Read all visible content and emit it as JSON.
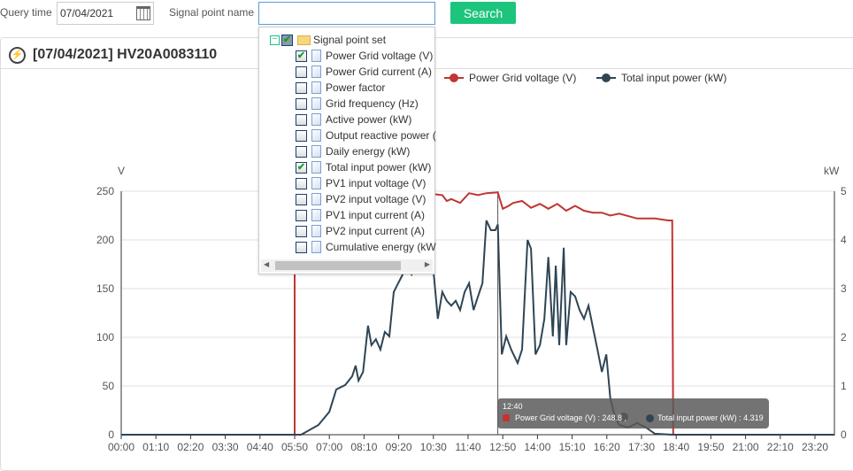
{
  "query": {
    "time_label": "Query time",
    "date": "07/04/2021",
    "signal_label": "Signal point name",
    "signal_value": "",
    "search_label": "Search"
  },
  "panel": {
    "title": "[07/04/2021] HV20A0083110"
  },
  "dropdown": {
    "root": "Signal point set",
    "items": [
      {
        "label": "Power Grid voltage (V)",
        "checked": true
      },
      {
        "label": "Power Grid current (A)",
        "checked": false
      },
      {
        "label": "Power factor",
        "checked": false
      },
      {
        "label": "Grid frequency (Hz)",
        "checked": false
      },
      {
        "label": "Active power (kW)",
        "checked": false
      },
      {
        "label": "Output reactive power (",
        "checked": false
      },
      {
        "label": "Daily energy (kW)",
        "checked": false
      },
      {
        "label": "Total input power (kW)",
        "checked": true
      },
      {
        "label": "PV1 input voltage (V)",
        "checked": false
      },
      {
        "label": "PV2 input voltage (V)",
        "checked": false
      },
      {
        "label": "PV1 input current (A)",
        "checked": false
      },
      {
        "label": "PV2 input current (A)",
        "checked": false
      },
      {
        "label": "Cumulative energy (kW",
        "checked": false
      }
    ]
  },
  "tooltip": {
    "time": "12:40",
    "line1": "Power Grid voltage (V) : 248.8 ,",
    "line2": "Total input power (kW) : 4.319"
  },
  "chart_data": {
    "type": "line",
    "yleft": {
      "unit": "V",
      "range": [
        0,
        250
      ],
      "ticks": [
        "0",
        "50",
        "100",
        "150",
        "200",
        "250"
      ]
    },
    "yright": {
      "unit": "kW",
      "range": [
        0,
        5
      ],
      "ticks": [
        "0",
        "1",
        "2",
        "3",
        "4",
        "5"
      ]
    },
    "xticks": [
      "00:00",
      "01:10",
      "02:20",
      "03:30",
      "04:40",
      "05:50",
      "07:00",
      "08:10",
      "09:20",
      "10:30",
      "11:40",
      "12:50",
      "14:00",
      "15:10",
      "16:20",
      "17:30",
      "18:40",
      "19:50",
      "21:00",
      "22:10",
      "23:20"
    ],
    "grid": true,
    "legend": "top",
    "series": [
      {
        "name": "Power Grid voltage (V)",
        "axis": "left",
        "color": "#c23531",
        "points": [
          [
            "00:00",
            0
          ],
          [
            "05:50",
            0
          ],
          [
            "05:50",
            245
          ],
          [
            "08:00",
            246
          ],
          [
            "10:30",
            247
          ],
          [
            "10:48",
            246
          ],
          [
            "10:57",
            240
          ],
          [
            "11:06",
            242
          ],
          [
            "11:24",
            238
          ],
          [
            "11:42",
            248
          ],
          [
            "12:00",
            246
          ],
          [
            "12:17",
            248
          ],
          [
            "12:40",
            248.8
          ],
          [
            "12:50",
            232
          ],
          [
            "13:02",
            235
          ],
          [
            "13:11",
            238
          ],
          [
            "13:29",
            240
          ],
          [
            "13:47",
            233
          ],
          [
            "14:05",
            237
          ],
          [
            "14:22",
            232
          ],
          [
            "14:40",
            237
          ],
          [
            "14:58",
            230
          ],
          [
            "15:16",
            235
          ],
          [
            "15:34",
            230
          ],
          [
            "15:52",
            228
          ],
          [
            "16:10",
            228
          ],
          [
            "16:27",
            225
          ],
          [
            "16:45",
            227
          ],
          [
            "17:21",
            222
          ],
          [
            "17:57",
            222
          ],
          [
            "18:24",
            220
          ],
          [
            "18:32",
            220
          ],
          [
            "18:34",
            0
          ],
          [
            "24:00",
            0
          ]
        ]
      },
      {
        "name": "Total input power (kW)",
        "axis": "right",
        "color": "#2f4554",
        "points": [
          [
            "00:00",
            0
          ],
          [
            "06:03",
            0
          ],
          [
            "06:38",
            0.2
          ],
          [
            "07:00",
            0.47
          ],
          [
            "07:14",
            0.93
          ],
          [
            "07:32",
            1.02
          ],
          [
            "07:46",
            1.2
          ],
          [
            "07:53",
            1.42
          ],
          [
            "07:59",
            1.11
          ],
          [
            "08:08",
            1.29
          ],
          [
            "08:18",
            2.24
          ],
          [
            "08:25",
            1.84
          ],
          [
            "08:34",
            1.96
          ],
          [
            "08:43",
            1.75
          ],
          [
            "08:52",
            2.11
          ],
          [
            "09:01",
            2.02
          ],
          [
            "09:10",
            2.93
          ],
          [
            "09:19",
            3.11
          ],
          [
            "09:28",
            3.29
          ],
          [
            "09:37",
            3.47
          ],
          [
            "09:46",
            3.29
          ],
          [
            "09:55",
            3.47
          ],
          [
            "10:04",
            3.65
          ],
          [
            "10:12",
            3.56
          ],
          [
            "10:21",
            3.47
          ],
          [
            "10:30",
            3.38
          ],
          [
            "10:39",
            2.38
          ],
          [
            "10:48",
            2.93
          ],
          [
            "10:57",
            2.75
          ],
          [
            "11:06",
            2.65
          ],
          [
            "11:15",
            2.75
          ],
          [
            "11:24",
            2.56
          ],
          [
            "11:33",
            2.93
          ],
          [
            "11:42",
            3.11
          ],
          [
            "11:51",
            2.56
          ],
          [
            "12:00",
            2.84
          ],
          [
            "12:09",
            3.11
          ],
          [
            "12:17",
            4.4
          ],
          [
            "12:26",
            4.2
          ],
          [
            "12:35",
            4.2
          ],
          [
            "12:40",
            4.319
          ],
          [
            "12:48",
            1.65
          ],
          [
            "12:57",
            2.02
          ],
          [
            "13:07",
            1.75
          ],
          [
            "13:20",
            1.47
          ],
          [
            "13:29",
            1.75
          ],
          [
            "13:40",
            4.0
          ],
          [
            "13:47",
            3.82
          ],
          [
            "13:56",
            1.65
          ],
          [
            "14:05",
            1.84
          ],
          [
            "14:14",
            2.38
          ],
          [
            "14:22",
            3.65
          ],
          [
            "14:31",
            2.02
          ],
          [
            "14:37",
            3.47
          ],
          [
            "14:44",
            1.84
          ],
          [
            "14:53",
            3.84
          ],
          [
            "14:58",
            1.84
          ],
          [
            "15:07",
            2.93
          ],
          [
            "15:16",
            2.84
          ],
          [
            "15:25",
            2.56
          ],
          [
            "15:34",
            2.38
          ],
          [
            "15:43",
            2.65
          ],
          [
            "15:52",
            2.2
          ],
          [
            "16:01",
            1.75
          ],
          [
            "16:10",
            1.29
          ],
          [
            "16:19",
            1.65
          ],
          [
            "16:27",
            0.75
          ],
          [
            "16:36",
            0.38
          ],
          [
            "16:45",
            0.2
          ],
          [
            "17:03",
            0.15
          ],
          [
            "17:21",
            0.24
          ],
          [
            "17:39",
            0.15
          ],
          [
            "17:57",
            0.02
          ],
          [
            "18:32",
            0
          ],
          [
            "24:00",
            0
          ]
        ]
      }
    ]
  }
}
